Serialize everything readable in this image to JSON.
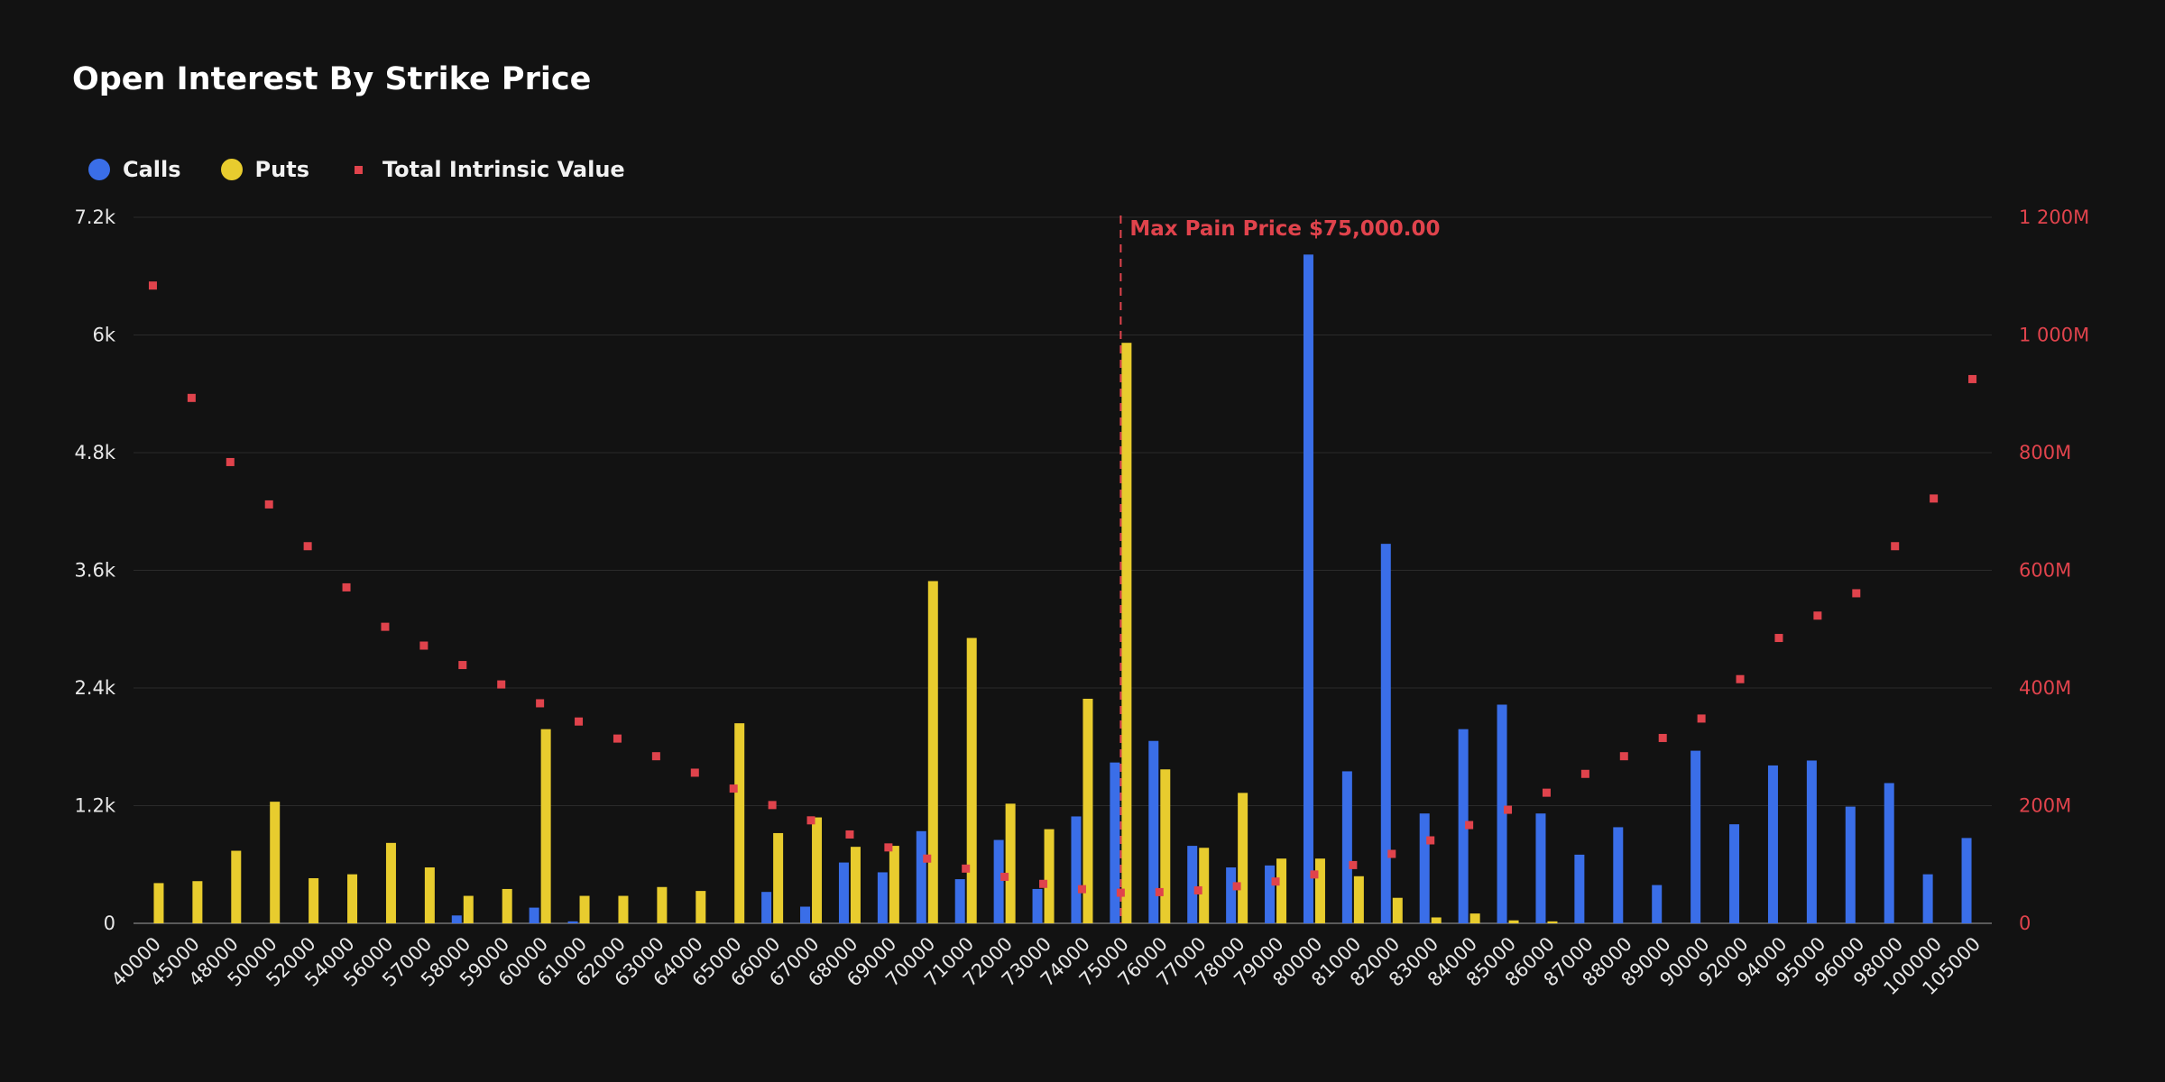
{
  "chart_data": {
    "type": "bar",
    "title": "Open Interest By Strike Price",
    "legend": {
      "placement": "top-left",
      "entries": [
        {
          "label": "Calls",
          "color": "#3a6ee8",
          "marker": "circle"
        },
        {
          "label": "Puts",
          "color": "#e8cc2e",
          "marker": "circle"
        },
        {
          "label": "Total Intrinsic Value",
          "color": "#e0434c",
          "marker": "square"
        }
      ]
    },
    "categories": [
      "40000",
      "45000",
      "48000",
      "50000",
      "52000",
      "54000",
      "56000",
      "57000",
      "58000",
      "59000",
      "60000",
      "61000",
      "62000",
      "63000",
      "64000",
      "65000",
      "66000",
      "67000",
      "68000",
      "69000",
      "70000",
      "71000",
      "72000",
      "73000",
      "74000",
      "75000",
      "76000",
      "77000",
      "78000",
      "79000",
      "80000",
      "81000",
      "82000",
      "83000",
      "84000",
      "85000",
      "86000",
      "87000",
      "88000",
      "89000",
      "90000",
      "92000",
      "94000",
      "95000",
      "96000",
      "98000",
      "100000",
      "105000"
    ],
    "series": [
      {
        "name": "Calls",
        "type": "bar",
        "axis": "left",
        "color": "#3a6ee8",
        "values": [
          0,
          0,
          0,
          0,
          0,
          0,
          0,
          0,
          80,
          0,
          160,
          20,
          0,
          0,
          0,
          0,
          320,
          170,
          620,
          520,
          940,
          450,
          850,
          350,
          1090,
          1640,
          1860,
          790,
          570,
          590,
          6820,
          1550,
          3870,
          1120,
          1980,
          2230,
          1120,
          700,
          980,
          390,
          1760,
          1010,
          1610,
          1660,
          1190,
          1430,
          500,
          870
        ]
      },
      {
        "name": "Puts",
        "type": "bar",
        "axis": "left",
        "color": "#e8cc2e",
        "values": [
          410,
          430,
          740,
          1240,
          460,
          500,
          820,
          570,
          280,
          350,
          1980,
          280,
          280,
          370,
          330,
          2040,
          920,
          1080,
          780,
          790,
          3490,
          2910,
          1220,
          960,
          2290,
          5920,
          1570,
          770,
          1330,
          660,
          660,
          480,
          260,
          60,
          100,
          30,
          20,
          0,
          0,
          0,
          0,
          0,
          0,
          0,
          0,
          0,
          0,
          0
        ]
      },
      {
        "name": "Total Intrinsic Value",
        "type": "scatter",
        "axis": "right",
        "color": "#e0434c",
        "values": [
          1084,
          893,
          784,
          712,
          641,
          571,
          504,
          472,
          439,
          406,
          374,
          343,
          314,
          284,
          256,
          229,
          201,
          175,
          151,
          129,
          110,
          93,
          79,
          67,
          58,
          52,
          53,
          56,
          63,
          71,
          83,
          99,
          118,
          141,
          167,
          193,
          222,
          254,
          284,
          315,
          348,
          415,
          485,
          523,
          561,
          641,
          722,
          925
        ]
      }
    ],
    "axes": {
      "left": {
        "min": 0,
        "max": 7200,
        "ticks": [
          "0",
          "1.2k",
          "2.4k",
          "3.6k",
          "4.8k",
          "6k",
          "7.2k"
        ]
      },
      "right": {
        "min": 0,
        "max": 1200,
        "ticks": [
          "0",
          "200M",
          "400M",
          "600M",
          "800M",
          "1 000M",
          "1 200M"
        ]
      },
      "grid": true
    },
    "annotations": [
      {
        "label": "Max Pain Price $75,000.00",
        "category": "75000",
        "color": "#e0434c",
        "style": "dashed-vertical-line"
      }
    ]
  }
}
